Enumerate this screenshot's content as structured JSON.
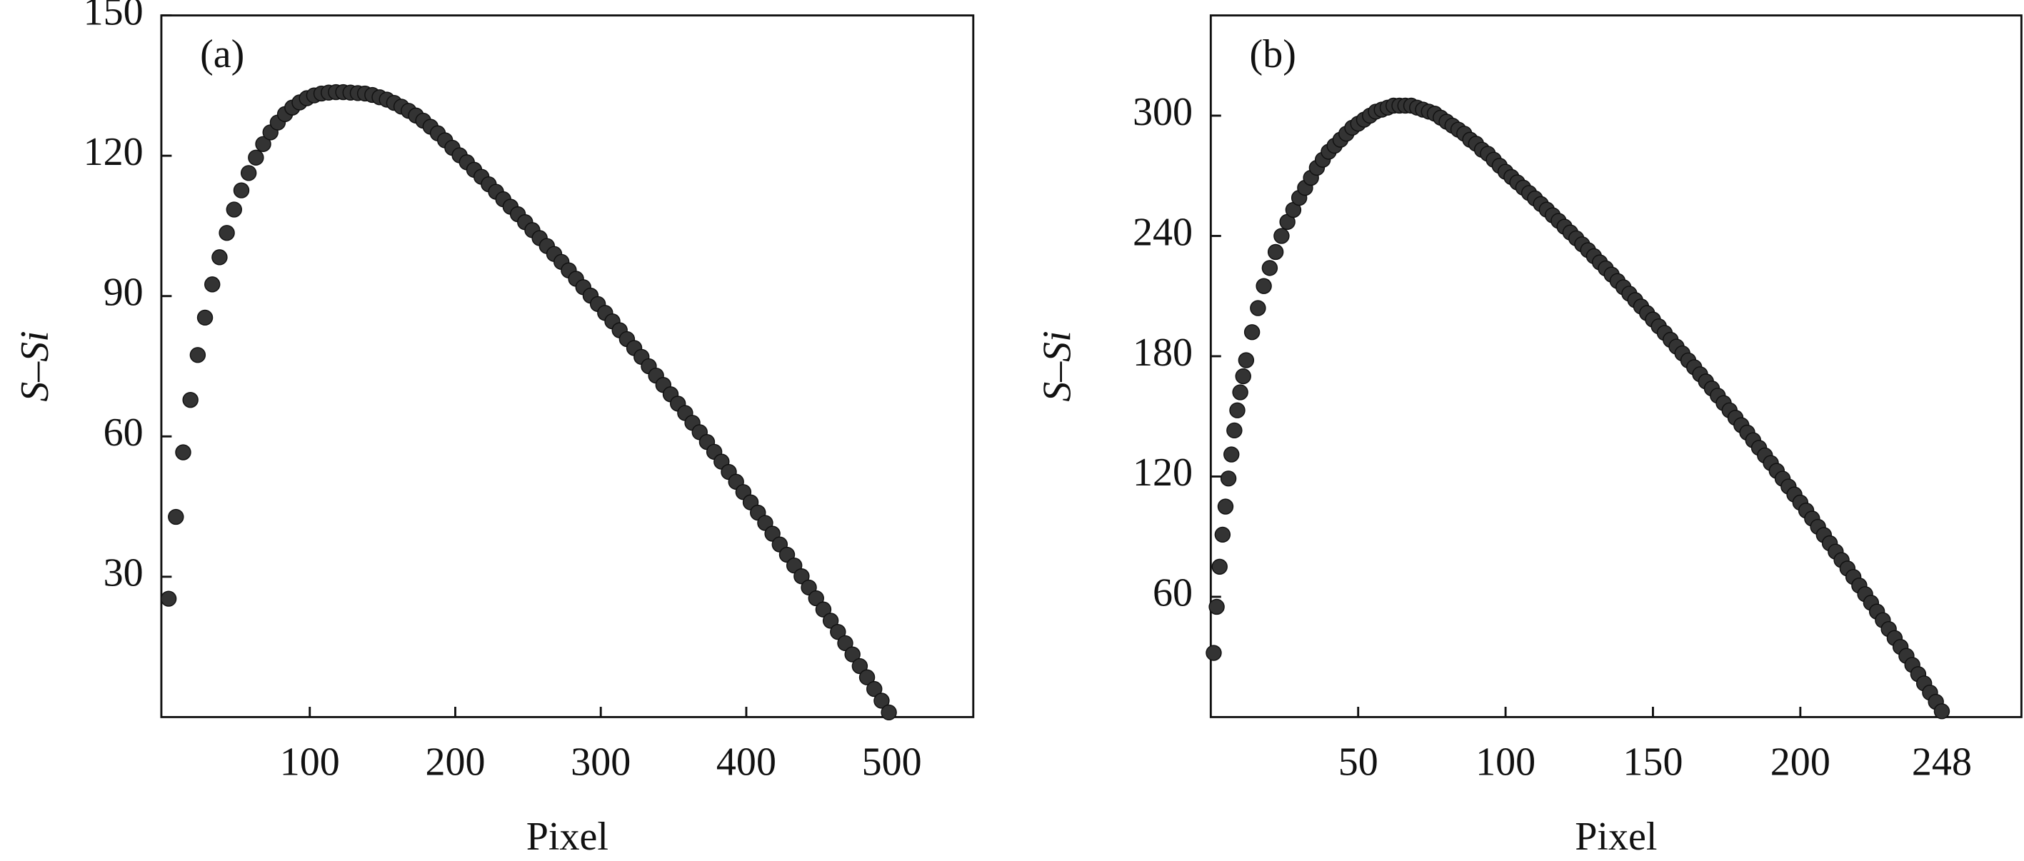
{
  "chart_data": [
    {
      "type": "scatter",
      "panel_label": "(a)",
      "xlabel": "Pixel",
      "ylabel": "S–Si",
      "color": "#333333",
      "xlim": [
        -2,
        556
      ],
      "ylim": [
        0,
        150
      ],
      "xticks": [
        100,
        200,
        300,
        400,
        500
      ],
      "yticks": [
        30,
        60,
        90,
        120,
        150
      ],
      "x": [
        3,
        8,
        13,
        18,
        23,
        28,
        33,
        38,
        43,
        48,
        53,
        58,
        63,
        68,
        73,
        78,
        83,
        88,
        93,
        98,
        103,
        108,
        113,
        118,
        123,
        128,
        133,
        138,
        143,
        148,
        153,
        158,
        163,
        168,
        173,
        178,
        183,
        188,
        193,
        198,
        203,
        208,
        213,
        218,
        223,
        228,
        233,
        238,
        243,
        248,
        253,
        258,
        263,
        268,
        273,
        278,
        283,
        288,
        293,
        298,
        303,
        308,
        313,
        318,
        323,
        328,
        333,
        338,
        343,
        348,
        353,
        358,
        363,
        368,
        373,
        378,
        383,
        388,
        393,
        398,
        403,
        408,
        413,
        418,
        423,
        428,
        433,
        438,
        443,
        448,
        453,
        458,
        463,
        468,
        473,
        478,
        483,
        488,
        493,
        498
      ],
      "values": [
        25.3,
        42.8,
        56.6,
        67.8,
        77.4,
        85.4,
        92.5,
        98.3,
        103.5,
        108.5,
        112.6,
        116.3,
        119.6,
        122.5,
        125,
        127.1,
        128.9,
        130.3,
        131.4,
        132.3,
        132.9,
        133.3,
        133.5,
        133.6,
        133.6,
        133.5,
        133.4,
        133.3,
        133.0,
        132.5,
        132.0,
        131.3,
        130.5,
        129.6,
        128.6,
        127.5,
        126.2,
        124.8,
        123.3,
        121.7,
        120.1,
        118.6,
        117.0,
        115.5,
        113.9,
        112.3,
        110.7,
        109.1,
        107.5,
        105.8,
        104.1,
        102.4,
        100.7,
        99.0,
        97.3,
        95.5,
        93.7,
        91.9,
        90.1,
        88.3,
        86.4,
        84.6,
        82.7,
        80.8,
        78.9,
        77.0,
        75.0,
        73.0,
        71.0,
        69.0,
        67.0,
        65.0,
        62.9,
        60.9,
        58.8,
        56.7,
        54.6,
        52.4,
        50.3,
        48.1,
        45.9,
        43.7,
        41.5,
        39.2,
        36.9,
        34.7,
        32.4,
        30.1,
        27.7,
        25.4,
        23.0,
        20.6,
        18.2,
        15.8,
        13.4,
        10.9,
        8.5,
        6.0,
        3.5,
        1.0
      ]
    },
    {
      "type": "scatter",
      "panel_label": "(b)",
      "xlabel": "Pixel",
      "ylabel": "S–Si",
      "color": "#333333",
      "xlim": [
        0,
        275
      ],
      "ylim": [
        0,
        350
      ],
      "xticks": [
        50,
        100,
        150,
        200,
        248
      ],
      "yticks": [
        60,
        120,
        180,
        240,
        300
      ],
      "x": [
        1,
        2,
        3,
        4,
        5,
        6,
        7,
        8,
        9,
        10,
        11,
        12,
        14,
        16,
        18,
        20,
        22,
        24,
        26,
        28,
        30,
        32,
        34,
        36,
        38,
        40,
        42,
        44,
        46,
        48,
        50,
        52,
        54,
        56,
        58,
        60,
        62,
        64,
        66,
        68,
        70,
        72,
        74,
        76,
        78,
        80,
        82,
        84,
        86,
        88,
        90,
        92,
        94,
        96,
        98,
        100,
        102,
        104,
        106,
        108,
        110,
        112,
        114,
        116,
        118,
        120,
        122,
        124,
        126,
        128,
        130,
        132,
        134,
        136,
        138,
        140,
        142,
        144,
        146,
        148,
        150,
        152,
        154,
        156,
        158,
        160,
        162,
        164,
        166,
        168,
        170,
        172,
        174,
        176,
        178,
        180,
        182,
        184,
        186,
        188,
        190,
        192,
        194,
        196,
        198,
        200,
        202,
        204,
        206,
        208,
        210,
        212,
        214,
        216,
        218,
        220,
        222,
        224,
        226,
        228,
        230,
        232,
        234,
        236,
        238,
        240,
        242,
        244,
        246,
        248
      ],
      "values": [
        32,
        55,
        75,
        91,
        105,
        119,
        131,
        143,
        153,
        162,
        170,
        178,
        192,
        204,
        215,
        224,
        232,
        240,
        247,
        253,
        259,
        264,
        269,
        274,
        278,
        282,
        285,
        288,
        291,
        294,
        296,
        298,
        300,
        302,
        303,
        304,
        305,
        305,
        305,
        305,
        304,
        303,
        302,
        301,
        299,
        297,
        295,
        293,
        291,
        288,
        286,
        283,
        281,
        278,
        275,
        272,
        269.4,
        266.7,
        264.1,
        261.4,
        258.7,
        255.9,
        253.1,
        250.3,
        247.5,
        244.6,
        241.7,
        238.8,
        235.8,
        232.9,
        229.9,
        226.8,
        223.8,
        220.7,
        217.5,
        214.4,
        211.2,
        208.0,
        204.8,
        201.5,
        198.3,
        194.9,
        191.6,
        188.2,
        184.8,
        181.4,
        177.9,
        174.5,
        171.0,
        167.4,
        163.9,
        160.3,
        156.6,
        153.0,
        149.3,
        145.6,
        141.9,
        138.1,
        134.3,
        130.5,
        126.7,
        122.8,
        118.9,
        115.0,
        111.0,
        107.0,
        103.0,
        99.0,
        94.9,
        90.8,
        86.7,
        82.5,
        78.3,
        74.1,
        69.9,
        65.6,
        61.3,
        57.0,
        52.6,
        48.3,
        43.9,
        39.4,
        35.0,
        30.5,
        26.0,
        21.4,
        16.8,
        12.2,
        7.6,
        2.9
      ]
    }
  ]
}
